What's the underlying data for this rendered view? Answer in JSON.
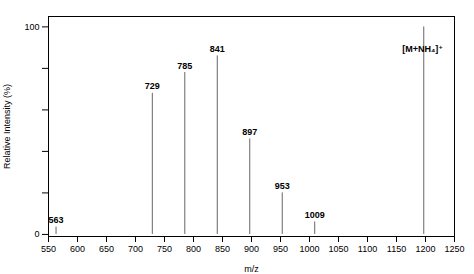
{
  "chart_data": {
    "type": "stem",
    "x": [
      563,
      729,
      785,
      841,
      897,
      953,
      1009,
      1197
    ],
    "values": [
      3.5,
      68.0,
      78.0,
      86.0,
      46.0,
      20.0,
      6.0,
      100.0
    ],
    "labels": [
      "563",
      "729",
      "785",
      "841",
      "897",
      "953",
      "1009",
      null
    ],
    "color": "#666666",
    "annotations": [
      {
        "text": "[M+NH₄]⁺",
        "x": 1160,
        "y": 88
      }
    ],
    "xlabel": "m/z",
    "ylabel": "Relative Intensity (%)",
    "xlim": [
      550,
      1250
    ],
    "ylim": [
      -1,
      105
    ],
    "xticks": [
      550,
      600,
      650,
      700,
      750,
      800,
      850,
      900,
      950,
      1000,
      1050,
      1100,
      1150,
      1200,
      1250
    ],
    "yticks": [
      0,
      {
        "value": 20,
        "label": ""
      },
      {
        "value": 40,
        "label": ""
      },
      {
        "value": 60,
        "label": ""
      },
      {
        "value": 80,
        "label": ""
      },
      100
    ],
    "grid": false
  }
}
